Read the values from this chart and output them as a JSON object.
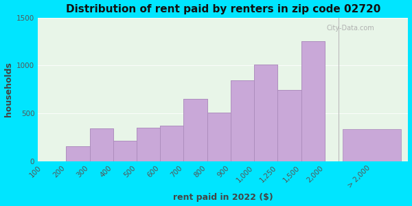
{
  "title": "Distribution of rent paid by renters in zip code 02720",
  "xlabel": "rent paid in 2022 ($)",
  "ylabel": "households",
  "bin_edges_labels": [
    "100",
    "200",
    "300",
    "400",
    "500",
    "600",
    "700",
    "800",
    "900",
    "1,000",
    "1,250",
    "1,500",
    "2,000"
  ],
  "extra_label": "> 2,000",
  "bar_values": [
    0,
    155,
    340,
    215,
    350,
    370,
    650,
    510,
    845,
    1010,
    745,
    1255,
    335
  ],
  "bar_color": "#c9a8d8",
  "bar_edgecolor": "#a888b8",
  "background_outer": "#00e5ff",
  "background_inner": "#e8f5e8",
  "title_fontsize": 11,
  "axis_label_fontsize": 9,
  "tick_fontsize": 7.5,
  "ylim": [
    0,
    1500
  ],
  "yticks": [
    0,
    500,
    1000,
    1500
  ],
  "watermark": "City-Data.com"
}
